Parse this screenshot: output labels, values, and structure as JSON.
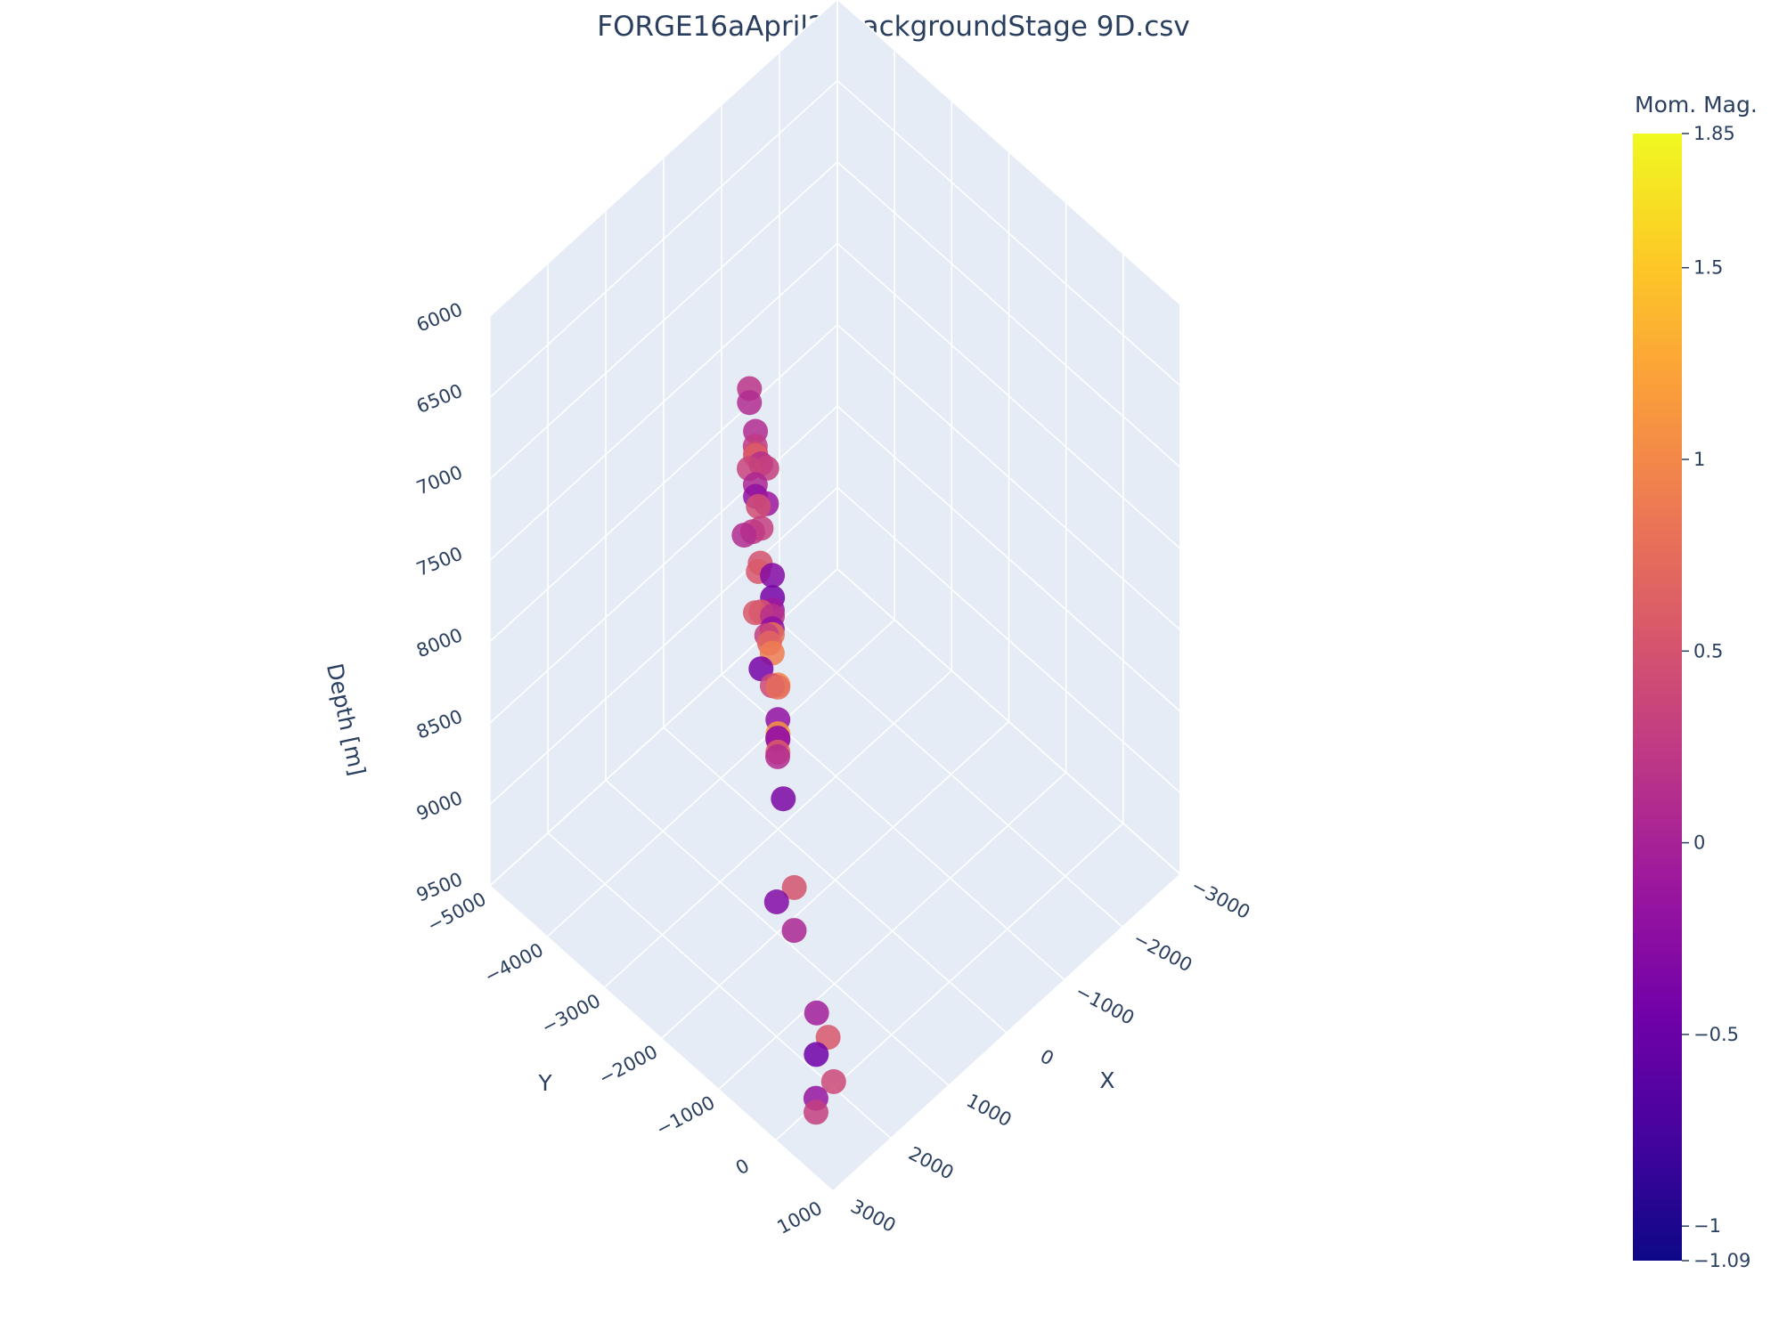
{
  "chart_data": {
    "type": "scatter",
    "title": "FORGE16aApril24BackgroundStage 9D.csv",
    "scene": {
      "x_axis": {
        "title": "X",
        "ticks": [
          "−3000",
          "−2000",
          "−1000",
          "0",
          "1000",
          "2000",
          "3000"
        ]
      },
      "y_axis": {
        "title": "Y",
        "ticks": [
          "−5000",
          "−4000",
          "−3000",
          "−2000",
          "−1000",
          "0",
          "1000"
        ]
      },
      "z_axis": {
        "title": "Depth [m]",
        "ticks": [
          "6000",
          "6500",
          "7000",
          "7500",
          "8000",
          "8500",
          "9000",
          "9500"
        ],
        "reversed": true
      },
      "background": "#e5ecf6",
      "grid_color": "#ffffff"
    },
    "colorbar": {
      "title": "Mom. Mag.",
      "min": -1.09,
      "max": 1.85,
      "ticks": [
        "1.85",
        "1.5",
        "1",
        "0.5",
        "0",
        "−0.5",
        "−1",
        "−1.09"
      ],
      "tick_values": [
        1.85,
        1.5,
        1,
        0.5,
        0,
        -0.5,
        -1,
        -1.09
      ],
      "colorscale": [
        "#0d0887",
        "#46039f",
        "#7201a8",
        "#9c179e",
        "#bd3786",
        "#d8576b",
        "#ed7953",
        "#fb9f3a",
        "#fdca26",
        "#f0f921"
      ]
    },
    "points": [
      {
        "x": 0,
        "y": -3500,
        "z": 6950,
        "mag": 0.2
      },
      {
        "x": -100,
        "y": -3600,
        "z": 7100,
        "mag": 0.1
      },
      {
        "x": 300,
        "y": -3200,
        "z": 7250,
        "mag": 0.35
      },
      {
        "x": 800,
        "y": -2500,
        "z": 7450,
        "mag": 0.5
      },
      {
        "x": 0,
        "y": -3300,
        "z": 7350,
        "mag": 0.15
      },
      {
        "x": -200,
        "y": -3600,
        "z": 7400,
        "mag": 0.25
      },
      {
        "x": 100,
        "y": -3100,
        "z": 7500,
        "mag": -0.1
      },
      {
        "x": -500,
        "y": -3900,
        "z": 7500,
        "mag": 0.1
      },
      {
        "x": -400,
        "y": -3600,
        "z": 7600,
        "mag": 0.3
      },
      {
        "x": -500,
        "y": -3900,
        "z": 7650,
        "mag": 0.6
      },
      {
        "x": -600,
        "y": -4000,
        "z": 7700,
        "mag": 0.4
      },
      {
        "x": -300,
        "y": -3700,
        "z": 7700,
        "mag": 0.05
      },
      {
        "x": -350,
        "y": -3700,
        "z": 7850,
        "mag": 0.45
      },
      {
        "x": -500,
        "y": -3900,
        "z": 7900,
        "mag": -0.2
      },
      {
        "x": -400,
        "y": -3700,
        "z": 8000,
        "mag": 0.3
      },
      {
        "x": -450,
        "y": -3900,
        "z": 8100,
        "mag": 0.25
      },
      {
        "x": -500,
        "y": -4100,
        "z": 8200,
        "mag": 0.1
      },
      {
        "x": -200,
        "y": -3300,
        "z": 8100,
        "mag": -0.3
      },
      {
        "x": -350,
        "y": -3700,
        "z": 8250,
        "mag": 0.55
      },
      {
        "x": -100,
        "y": -3200,
        "z": 8250,
        "mag": -0.1
      },
      {
        "x": -300,
        "y": -3400,
        "z": 8300,
        "mag": -0.4
      },
      {
        "x": -200,
        "y": -3300,
        "z": 8350,
        "mag": 0.15
      },
      {
        "x": 0,
        "y": -3100,
        "z": 8300,
        "mag": -0.2
      },
      {
        "x": -100,
        "y": -3200,
        "z": 8400,
        "mag": 0.8
      },
      {
        "x": -300,
        "y": -3600,
        "z": 8450,
        "mag": 0.5
      },
      {
        "x": -200,
        "y": -3400,
        "z": 8500,
        "mag": 0.3
      },
      {
        "x": -150,
        "y": -3300,
        "z": 8500,
        "mag": 0.7
      },
      {
        "x": 0,
        "y": -3100,
        "z": 8450,
        "mag": 0.9
      },
      {
        "x": -400,
        "y": -3800,
        "z": 8550,
        "mag": 0.55
      },
      {
        "x": 100,
        "y": -2900,
        "z": 8550,
        "mag": 1.0
      },
      {
        "x": 200,
        "y": -2800,
        "z": 8500,
        "mag": 0.75
      },
      {
        "x": 1800,
        "y": -1200,
        "z": 8800,
        "mag": -0.3
      },
      {
        "x": 0,
        "y": -3100,
        "z": 8650,
        "mag": 0.4
      },
      {
        "x": 200,
        "y": -2800,
        "z": 8700,
        "mag": -0.2
      },
      {
        "x": 300,
        "y": -2700,
        "z": 8750,
        "mag": -0.3
      },
      {
        "x": -300,
        "y": -3600,
        "z": 8800,
        "mag": -0.4
      },
      {
        "x": 100,
        "y": -2900,
        "z": 8850,
        "mag": 1.1
      },
      {
        "x": 400,
        "y": -2600,
        "z": 8800,
        "mag": 0.1
      },
      {
        "x": 200,
        "y": -2800,
        "z": 8900,
        "mag": 0.6
      },
      {
        "x": 600,
        "y": -2300,
        "z": 8900,
        "mag": -0.35
      },
      {
        "x": 0,
        "y": -3000,
        "z": 8950,
        "mag": -0.1
      },
      {
        "x": 1200,
        "y": -1500,
        "z": 9000,
        "mag": 0.5
      },
      {
        "x": 1300,
        "y": -1400,
        "z": 9200,
        "mag": 0.05
      },
      {
        "x": 2800,
        "y": 500,
        "z": 9150,
        "mag": -0.15
      },
      {
        "x": 2300,
        "y": 0,
        "z": 9200,
        "mag": -0.45
      },
      {
        "x": 1900,
        "y": -400,
        "z": 9200,
        "mag": -0.05
      },
      {
        "x": 2700,
        "y": 400,
        "z": 9300,
        "mag": 0.3
      },
      {
        "x": 1800,
        "y": -300,
        "z": 9350,
        "mag": 0.55
      },
      {
        "x": 2100,
        "y": 100,
        "z": 9400,
        "mag": 0.4
      }
    ]
  }
}
